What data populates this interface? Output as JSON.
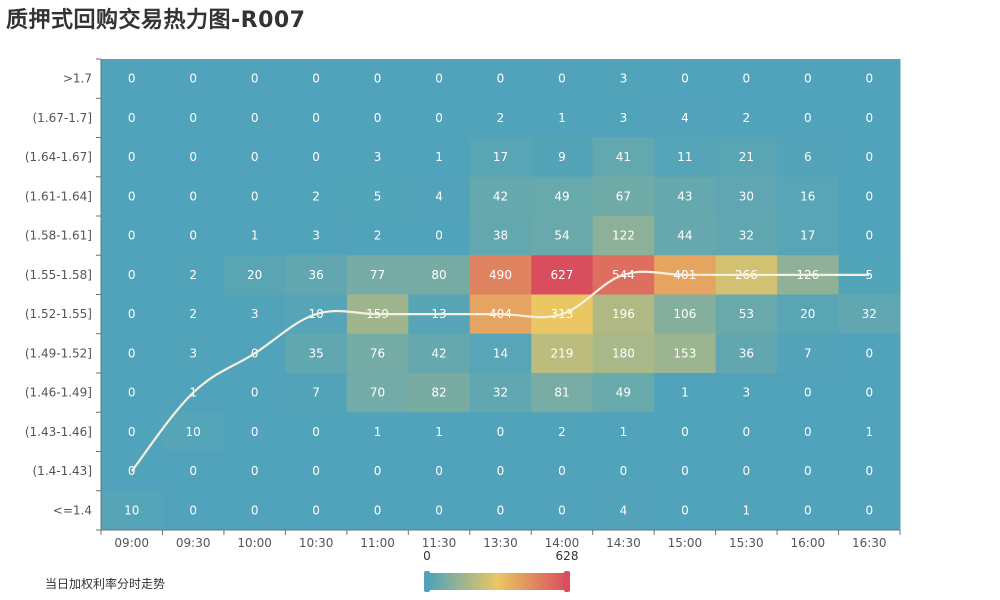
{
  "title": "质押式回购交易热力图-R007",
  "chart_data": {
    "type": "heatmap",
    "x_categories": [
      "09:00",
      "09:30",
      "10:00",
      "10:30",
      "11:00",
      "11:30",
      "13:30",
      "14:00",
      "14:30",
      "15:00",
      "15:30",
      "16:00",
      "16:30"
    ],
    "y_categories_top_to_bottom": [
      ">1.7",
      "(1.67-1.7]",
      "(1.64-1.67]",
      "(1.61-1.64]",
      "(1.58-1.61]",
      "(1.55-1.58]",
      "(1.52-1.55]",
      "(1.49-1.52]",
      "(1.46-1.49]",
      "(1.43-1.46]",
      "(1.4-1.43]",
      "<=1.4"
    ],
    "values": [
      [
        0,
        0,
        0,
        0,
        0,
        0,
        0,
        0,
        3,
        0,
        0,
        0,
        0
      ],
      [
        0,
        0,
        0,
        0,
        0,
        0,
        2,
        1,
        3,
        4,
        2,
        0,
        0
      ],
      [
        0,
        0,
        0,
        0,
        3,
        1,
        17,
        9,
        41,
        11,
        21,
        6,
        0
      ],
      [
        0,
        0,
        0,
        2,
        5,
        4,
        42,
        49,
        67,
        43,
        30,
        16,
        0
      ],
      [
        0,
        0,
        1,
        3,
        2,
        0,
        38,
        54,
        122,
        44,
        32,
        17,
        0
      ],
      [
        0,
        2,
        20,
        36,
        77,
        80,
        490,
        627,
        544,
        401,
        266,
        126,
        5
      ],
      [
        0,
        2,
        3,
        10,
        159,
        13,
        404,
        313,
        196,
        106,
        53,
        20,
        32
      ],
      [
        0,
        3,
        0,
        35,
        76,
        42,
        14,
        219,
        180,
        153,
        36,
        7,
        0
      ],
      [
        0,
        1,
        0,
        7,
        70,
        82,
        32,
        81,
        49,
        1,
        3,
        0,
        0
      ],
      [
        0,
        10,
        0,
        0,
        1,
        1,
        0,
        2,
        1,
        0,
        0,
        0,
        1
      ],
      [
        0,
        0,
        0,
        0,
        0,
        0,
        0,
        0,
        0,
        0,
        0,
        0,
        0
      ],
      [
        10,
        0,
        0,
        0,
        0,
        0,
        0,
        0,
        4,
        0,
        1,
        0,
        0
      ]
    ],
    "trend_series": {
      "name": "当日加权利率分时走势",
      "y_bucket_index_top_to_bottom": [
        10,
        8.0,
        7.0,
        6.0,
        6.0,
        6.0,
        6.0,
        6.0,
        5.0,
        5.0,
        5.0,
        5.0,
        5.0
      ]
    },
    "visual_map": {
      "min": 0,
      "max": 628,
      "min_label": "0",
      "max_label": "628",
      "colors": [
        "#50a3ba",
        "#eac763",
        "#d94e5d"
      ]
    },
    "line_color": "#f5f0e0"
  }
}
